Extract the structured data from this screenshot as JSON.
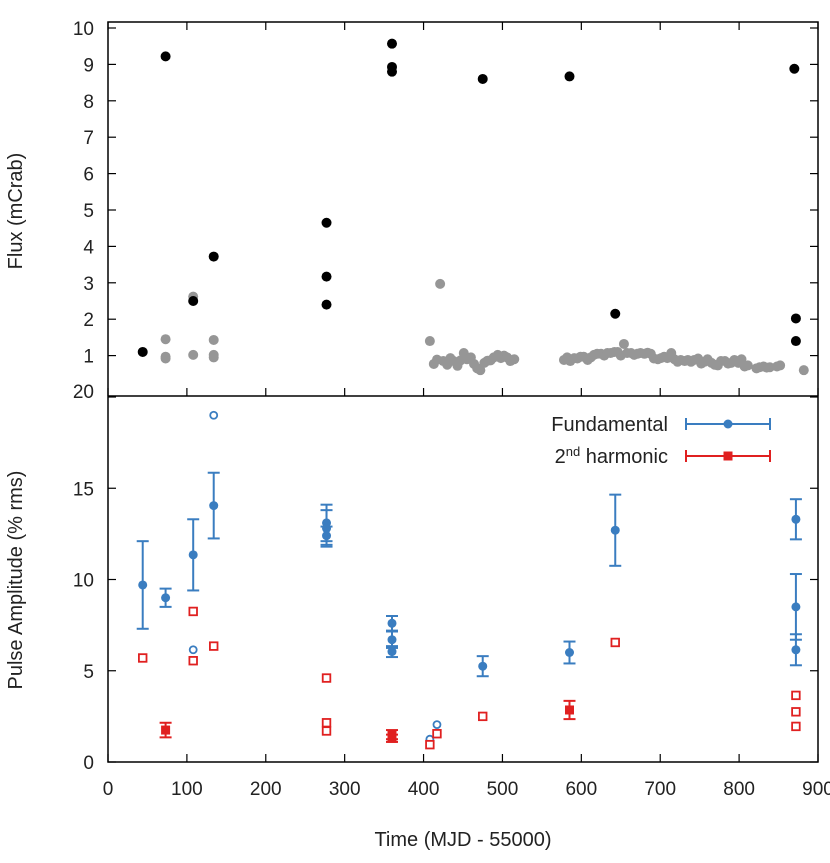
{
  "chart_data": [
    {
      "type": "scatter",
      "panel": "top",
      "ylabel": "Flux (mCrab)",
      "ylim": [
        0,
        10
      ],
      "yticks": [
        1,
        2,
        3,
        4,
        5,
        6,
        7,
        8,
        9,
        10
      ],
      "ytick_labels": [
        "1",
        "2",
        "3",
        "4",
        "5",
        "6",
        "7",
        "8",
        "9",
        "10"
      ],
      "xlim": [
        0,
        900
      ],
      "series": [
        {
          "color": "#000000",
          "points": [
            [
              44,
              1.1
            ],
            [
              73,
              9.22
            ],
            [
              108,
              2.5
            ],
            [
              134,
              3.72
            ],
            [
              277,
              4.65
            ],
            [
              277,
              3.17
            ],
            [
              277,
              2.4
            ],
            [
              360,
              9.57
            ],
            [
              360,
              8.93
            ],
            [
              360,
              8.8
            ],
            [
              475,
              8.6
            ],
            [
              585,
              8.67
            ],
            [
              643,
              2.15
            ],
            [
              870,
              8.88
            ],
            [
              872,
              2.02
            ],
            [
              872,
              1.4
            ]
          ]
        },
        {
          "color": "#969696",
          "points": [
            [
              73,
              1.45
            ],
            [
              73,
              0.97
            ],
            [
              73,
              0.92
            ],
            [
              108,
              2.62
            ],
            [
              108,
              1.02
            ],
            [
              134,
              1.43
            ],
            [
              134,
              1.02
            ],
            [
              134,
              0.95
            ],
            [
              408,
              1.4
            ],
            [
              413,
              0.77
            ],
            [
              417,
              0.89
            ],
            [
              421,
              2.97
            ],
            [
              425,
              0.85
            ],
            [
              430,
              0.75
            ],
            [
              434,
              0.93
            ],
            [
              438,
              0.85
            ],
            [
              443,
              0.72
            ],
            [
              447,
              0.87
            ],
            [
              451,
              1.07
            ],
            [
              455,
              0.9
            ],
            [
              460,
              0.95
            ],
            [
              464,
              0.77
            ],
            [
              468,
              0.65
            ],
            [
              472,
              0.6
            ],
            [
              477,
              0.8
            ],
            [
              481,
              0.86
            ],
            [
              485,
              0.87
            ],
            [
              489,
              0.95
            ],
            [
              494,
              1.02
            ],
            [
              498,
              0.93
            ],
            [
              502,
              1.0
            ],
            [
              506,
              0.95
            ],
            [
              510,
              0.85
            ],
            [
              515,
              0.9
            ],
            [
              578,
              0.88
            ],
            [
              582,
              0.95
            ],
            [
              586,
              0.85
            ],
            [
              591,
              0.93
            ],
            [
              595,
              0.92
            ],
            [
              599,
              0.97
            ],
            [
              603,
              0.97
            ],
            [
              608,
              0.88
            ],
            [
              612,
              0.95
            ],
            [
              616,
              1.02
            ],
            [
              620,
              1.05
            ],
            [
              625,
              1.05
            ],
            [
              629,
              1.0
            ],
            [
              633,
              1.07
            ],
            [
              637,
              1.07
            ],
            [
              642,
              1.1
            ],
            [
              646,
              1.1
            ],
            [
              650,
              1.0
            ],
            [
              654,
              1.32
            ],
            [
              658,
              1.07
            ],
            [
              663,
              1.07
            ],
            [
              667,
              1.02
            ],
            [
              671,
              1.05
            ],
            [
              675,
              1.07
            ],
            [
              680,
              1.05
            ],
            [
              684,
              1.08
            ],
            [
              688,
              1.05
            ],
            [
              692,
              0.92
            ],
            [
              697,
              0.9
            ],
            [
              701,
              0.93
            ],
            [
              705,
              0.97
            ],
            [
              709,
              0.93
            ],
            [
              714,
              1.07
            ],
            [
              718,
              0.9
            ],
            [
              722,
              0.83
            ],
            [
              726,
              0.88
            ],
            [
              731,
              0.85
            ],
            [
              735,
              0.88
            ],
            [
              739,
              0.83
            ],
            [
              743,
              0.88
            ],
            [
              748,
              0.92
            ],
            [
              752,
              0.78
            ],
            [
              756,
              0.83
            ],
            [
              760,
              0.9
            ],
            [
              765,
              0.8
            ],
            [
              769,
              0.75
            ],
            [
              773,
              0.73
            ],
            [
              777,
              0.85
            ],
            [
              782,
              0.85
            ],
            [
              786,
              0.78
            ],
            [
              790,
              0.8
            ],
            [
              794,
              0.88
            ],
            [
              799,
              0.8
            ],
            [
              803,
              0.9
            ],
            [
              807,
              0.7
            ],
            [
              811,
              0.73
            ],
            [
              822,
              0.65
            ],
            [
              826,
              0.68
            ],
            [
              831,
              0.7
            ],
            [
              835,
              0.67
            ],
            [
              839,
              0.68
            ],
            [
              848,
              0.7
            ],
            [
              852,
              0.73
            ],
            [
              882,
              0.6
            ]
          ]
        }
      ]
    },
    {
      "type": "scatter",
      "panel": "bottom",
      "xlabel": "Time (MJD - 55000)",
      "ylabel": "Pulse Amplitude (% rms)",
      "xlim": [
        0,
        900
      ],
      "xticks": [
        0,
        100,
        200,
        300,
        400,
        500,
        600,
        700,
        800,
        900
      ],
      "xtick_labels": [
        "0",
        "100",
        "200",
        "300",
        "400",
        "500",
        "600",
        "700",
        "800",
        "900"
      ],
      "ylim": [
        0,
        20
      ],
      "yticks": [
        0,
        5,
        10,
        15,
        20
      ],
      "ytick_labels": [
        "0",
        "5",
        "10",
        "15",
        "20"
      ],
      "legend_position": "top-right",
      "series": [
        {
          "name": "Fundamental",
          "color": "#3a7dc0",
          "marker": "circle",
          "points": [
            [
              44,
              9.7,
              2.4
            ],
            [
              73,
              9.0,
              0.5
            ],
            [
              108,
              11.35,
              1.95
            ],
            [
              134,
              14.05,
              1.8
            ],
            [
              277,
              13.1,
              1.0
            ],
            [
              277,
              12.4,
              0.5
            ],
            [
              277,
              12.8,
              1.0
            ],
            [
              360,
              7.6,
              0.4
            ],
            [
              360,
              6.7,
              0.45
            ],
            [
              360,
              6.05,
              0.3
            ],
            [
              475,
              5.25,
              0.55
            ],
            [
              585,
              6.0,
              0.6
            ],
            [
              643,
              12.7,
              1.95
            ],
            [
              872,
              13.3,
              1.1
            ],
            [
              872,
              8.5,
              1.8
            ],
            [
              872,
              6.15,
              0.85
            ]
          ],
          "open_points": [
            [
              108,
              6.15
            ],
            [
              134,
              19.0
            ],
            [
              408,
              1.25
            ],
            [
              417,
              2.05
            ]
          ]
        },
        {
          "name": "2nd harmonic",
          "name_base": "2",
          "name_sup": "nd",
          "name_rest": " harmonic",
          "color": "#e02020",
          "marker": "square",
          "points": [
            [
              73,
              1.75,
              0.4
            ],
            [
              360,
              1.5,
              0.25
            ],
            [
              360,
              1.3,
              0.2
            ],
            [
              585,
              2.85,
              0.5
            ]
          ],
          "open_points": [
            [
              44,
              5.7
            ],
            [
              108,
              8.25
            ],
            [
              108,
              5.55
            ],
            [
              134,
              6.35
            ],
            [
              277,
              4.6
            ],
            [
              277,
              2.15
            ],
            [
              277,
              1.7
            ],
            [
              408,
              0.95
            ],
            [
              417,
              1.55
            ],
            [
              475,
              2.5
            ],
            [
              643,
              6.55
            ],
            [
              872,
              3.65
            ],
            [
              872,
              2.75
            ],
            [
              872,
              1.95
            ]
          ]
        }
      ]
    }
  ]
}
